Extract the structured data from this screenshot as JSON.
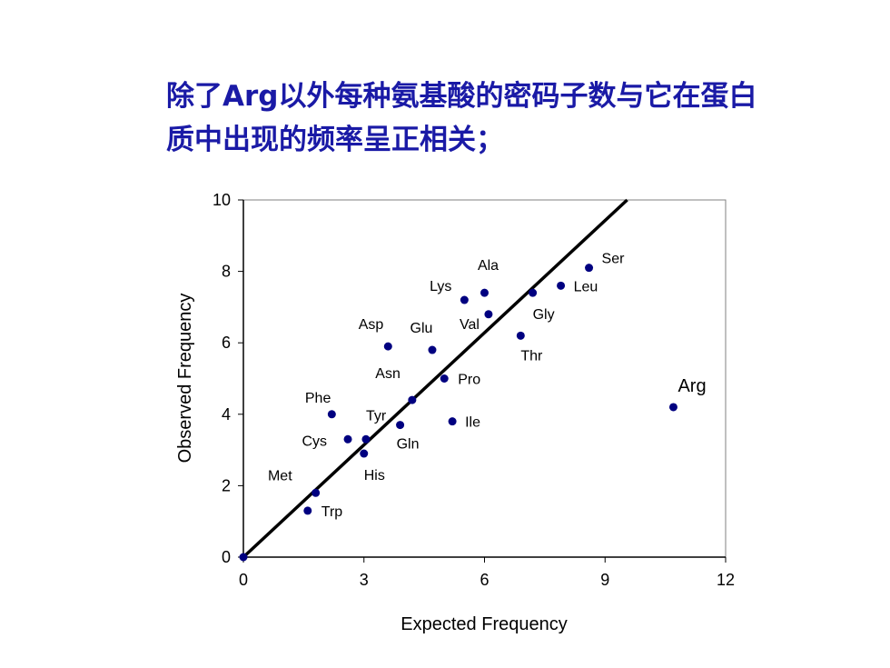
{
  "title": {
    "line1": "除了Arg以外每种氨基酸的密码子数与它在蛋白",
    "line2": "质中出现的频率呈正相关；",
    "color": "#1a1aa6"
  },
  "chart_data": {
    "type": "scatter",
    "xlabel": "Expected Frequency",
    "ylabel": "Observed Frequency",
    "xlim": [
      0,
      12
    ],
    "ylim": [
      0,
      10
    ],
    "xticks": [
      0,
      3,
      6,
      9,
      12
    ],
    "yticks": [
      0,
      2,
      4,
      6,
      8,
      10
    ],
    "grid": false,
    "point_color": "#000080",
    "points": [
      {
        "name": "Ser",
        "x": 8.6,
        "y": 8.1
      },
      {
        "name": "Leu",
        "x": 7.9,
        "y": 7.6
      },
      {
        "name": "Ala",
        "x": 6.0,
        "y": 7.4
      },
      {
        "name": "Lys",
        "x": 5.5,
        "y": 7.2
      },
      {
        "name": "Gly",
        "x": 7.2,
        "y": 7.4
      },
      {
        "name": "Val",
        "x": 6.1,
        "y": 6.8
      },
      {
        "name": "Thr",
        "x": 6.9,
        "y": 6.2
      },
      {
        "name": "Asp",
        "x": 3.6,
        "y": 5.9
      },
      {
        "name": "Glu",
        "x": 4.7,
        "y": 5.8
      },
      {
        "name": "Pro",
        "x": 5.0,
        "y": 5.0
      },
      {
        "name": "Asn",
        "x": 4.2,
        "y": 4.4
      },
      {
        "name": "Arg",
        "x": 10.7,
        "y": 4.2
      },
      {
        "name": "Phe",
        "x": 2.2,
        "y": 4.0
      },
      {
        "name": "Ile",
        "x": 5.2,
        "y": 3.8
      },
      {
        "name": "Gln",
        "x": 3.9,
        "y": 3.7
      },
      {
        "name": "Tyr",
        "x": 3.05,
        "y": 3.3
      },
      {
        "name": "Cys",
        "x": 2.6,
        "y": 3.3
      },
      {
        "name": "His",
        "x": 3.0,
        "y": 2.9
      },
      {
        "name": "Met",
        "x": 1.8,
        "y": 1.8
      },
      {
        "name": "Trp",
        "x": 1.6,
        "y": 1.3
      },
      {
        "name": "",
        "x": 0.0,
        "y": 0.0
      }
    ],
    "fit_line": {
      "x": [
        0,
        9.55
      ],
      "y": [
        0,
        10
      ]
    }
  }
}
